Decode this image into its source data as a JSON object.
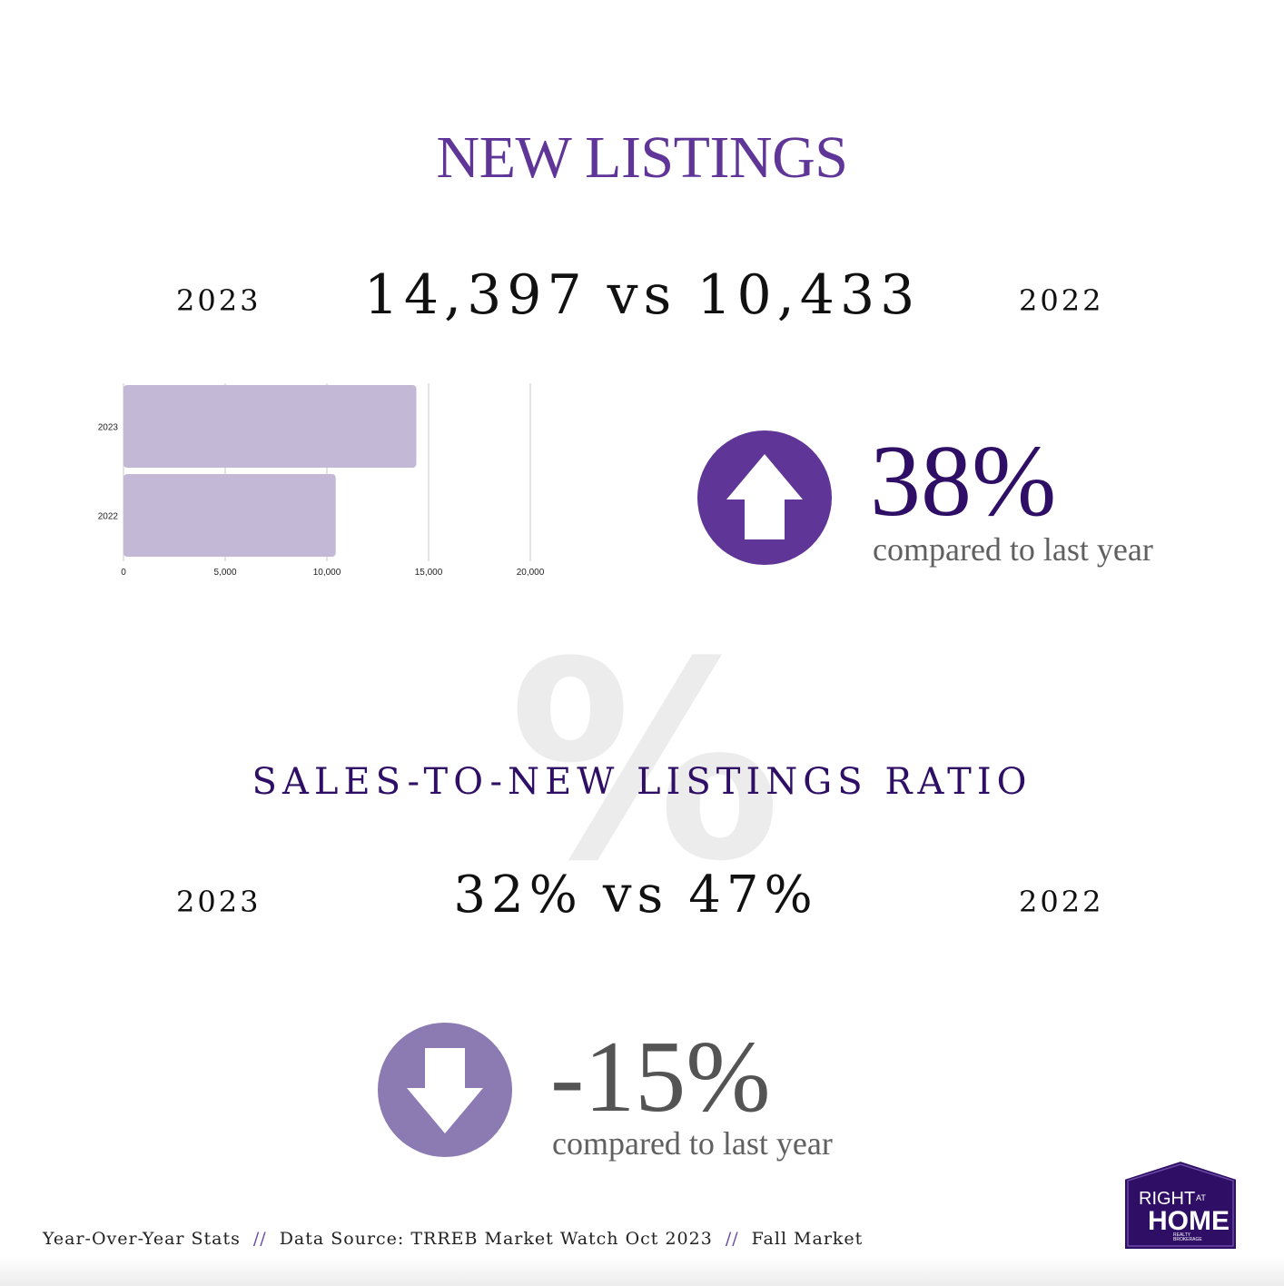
{
  "title": "NEW LISTINGS",
  "new_listings": {
    "year_current": "2023",
    "year_previous": "2022",
    "value_current": "14,397",
    "vs": "vs",
    "value_previous": "10,433",
    "change": "38%",
    "change_caption": "compared to last year",
    "direction": "up",
    "color": "#5f3598"
  },
  "ratio": {
    "title": "SALES-TO-NEW LISTINGS RATIO",
    "watermark": "%",
    "year_current": "2023",
    "year_previous": "2022",
    "value_current": "32%",
    "vs": "vs",
    "value_previous": "47%",
    "change": "-15%",
    "change_caption": "compared to last year",
    "direction": "down",
    "color": "#8c7ab3"
  },
  "footer": {
    "item1": "Year-Over-Year Stats",
    "sep": "//",
    "item2": "Data Source: TRREB Market Watch Oct 2023",
    "item3": "Fall Market"
  },
  "logo": {
    "line1": "RIGHT",
    "line1b": "AT",
    "line2": "HOME",
    "line3": "REALTY",
    "line4": "BROKERAGE"
  },
  "chart_data": {
    "type": "bar",
    "orientation": "horizontal",
    "categories": [
      "2023",
      "2022"
    ],
    "values": [
      14397,
      10433
    ],
    "xlim": [
      0,
      20000
    ],
    "xticks": [
      0,
      5000,
      10000,
      15000,
      20000
    ],
    "xtick_labels": [
      "0",
      "5,000",
      "10,000",
      "15,000",
      "20,000"
    ],
    "grid": true,
    "bar_color": "#c3b9d7",
    "grid_color": "#c8c8c8"
  }
}
